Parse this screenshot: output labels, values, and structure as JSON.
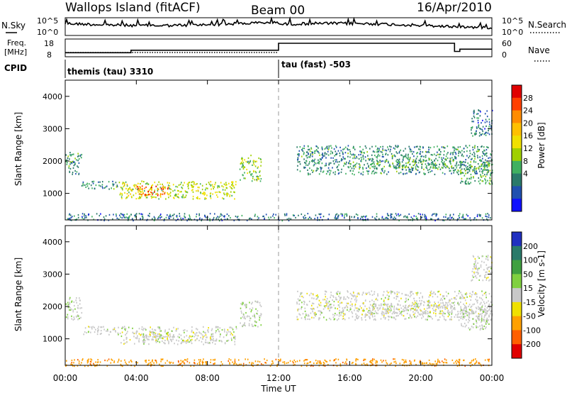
{
  "header": {
    "site": "Wallops Island (fitACF)",
    "beam": "Beam 00",
    "date": "16/Apr/2010"
  },
  "panels": {
    "nsky_label": "N.Sky",
    "nsky_ticks": [
      "10^5",
      "10^0"
    ],
    "nsearch_label": "N.Search",
    "freq_label_1": "Freq.",
    "freq_label_2": "[MHz]",
    "freq_ticks": [
      "18",
      "8"
    ],
    "nave_ticks": [
      "60",
      "0"
    ],
    "nave_label": "Nave",
    "cpid_label": "CPID",
    "cpid_1": "themis (tau) 3310",
    "cpid_2": "tau (fast) -503"
  },
  "axes": {
    "ylabel": "Slant Range [km]",
    "xlabel": "Time UT",
    "x_ticks": [
      "00:00",
      "04:00",
      "08:00",
      "12:00",
      "16:00",
      "20:00",
      "00:00"
    ],
    "y_ticks": [
      "1000",
      "2000",
      "3000",
      "4000"
    ]
  },
  "colorbars": {
    "power_label": "Power [dB]",
    "power_ticks": [
      "28",
      "24",
      "20",
      "16",
      "12",
      "8",
      "4"
    ],
    "power_colors": [
      "#e00000",
      "#ff4000",
      "#ff8c00",
      "#ffc000",
      "#f0e000",
      "#a0d000",
      "#40b060",
      "#2a7a6a",
      "#2050b0",
      "#1010ff"
    ],
    "velocity_label": "Velocity [m s-1]",
    "velocity_ticks": [
      "200",
      "100",
      "50",
      "15",
      "-15",
      "-50",
      "-100",
      "-200"
    ],
    "velocity_colors": [
      "#2030c0",
      "#2a7a6a",
      "#40a040",
      "#80d040",
      "#c8c8c8",
      "#f0e000",
      "#ffa000",
      "#ff6000",
      "#e00000"
    ]
  },
  "chart_data": {
    "type": "heatmap",
    "x_range_hours": [
      0,
      24
    ],
    "y_range_km": [
      180,
      4500
    ],
    "nsky_ylim": [
      1,
      100000
    ],
    "freq_ylim": [
      8,
      18
    ],
    "nave_ylim": [
      0,
      60
    ],
    "freq_segments_mhz": [
      {
        "start": 0,
        "end": 3.7,
        "value": 10.3
      },
      {
        "start": 3.7,
        "end": 12.0,
        "value": 11.7
      },
      {
        "start": 12.0,
        "end": 21.9,
        "value": 15.6
      },
      {
        "start": 21.9,
        "end": 22.2,
        "value": 11.0
      },
      {
        "start": 22.2,
        "end": 24,
        "value": 12.3
      }
    ],
    "cpid_segments": [
      {
        "start": 0,
        "end": 12.0,
        "label": "themis (tau) 3310"
      },
      {
        "start": 12.0,
        "end": 24,
        "label": "tau (fast) -503"
      }
    ],
    "echo_regions": [
      {
        "t0": 3.0,
        "t1": 9.6,
        "r0": 850,
        "r1": 1400,
        "power_db": 14,
        "velocity": 0
      },
      {
        "t0": 4.0,
        "t1": 5.8,
        "r0": 950,
        "r1": 1250,
        "power_db": 24,
        "velocity": 0
      },
      {
        "t0": 0.9,
        "t1": 3.0,
        "r0": 1150,
        "r1": 1400,
        "power_db": 8,
        "velocity": 0
      },
      {
        "t0": 0.0,
        "t1": 0.9,
        "r0": 1600,
        "r1": 2300,
        "power_db": 8,
        "velocity": 5
      },
      {
        "t0": 9.8,
        "t1": 11.0,
        "r0": 1400,
        "r1": 2200,
        "power_db": 12,
        "velocity": 10
      },
      {
        "t0": 13.0,
        "t1": 24.0,
        "r0": 1600,
        "r1": 2500,
        "power_db": 8,
        "velocity": 0
      },
      {
        "t0": 17.0,
        "t1": 22.0,
        "r0": 1800,
        "r1": 2100,
        "power_db": 10,
        "velocity": 0
      },
      {
        "t0": 22.2,
        "t1": 24.0,
        "r0": 1300,
        "r1": 2000,
        "power_db": 10,
        "velocity": 5
      },
      {
        "t0": 22.8,
        "t1": 24.0,
        "r0": 2800,
        "r1": 3600,
        "power_db": 6,
        "velocity": 0
      },
      {
        "t0": 0.0,
        "t1": 24.0,
        "r0": 180,
        "r1": 400,
        "power_db": 6,
        "velocity": -60
      }
    ]
  }
}
